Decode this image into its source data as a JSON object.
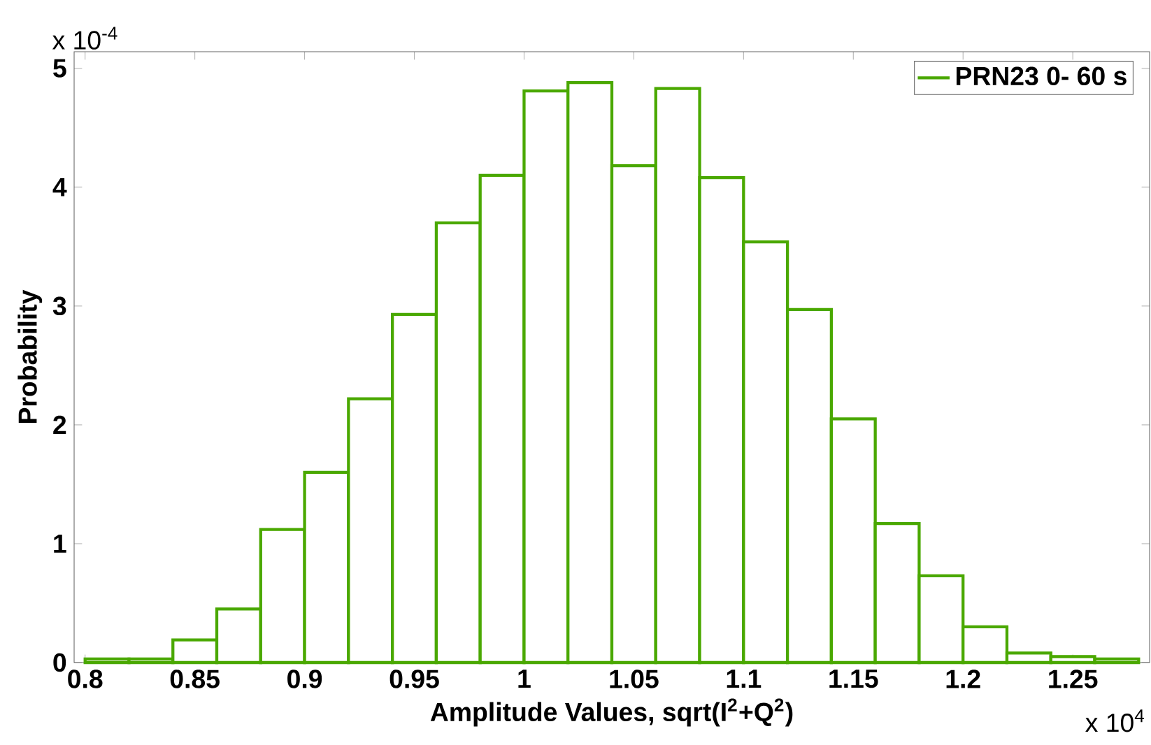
{
  "chart_data": {
    "type": "histogram",
    "xlabel": "Amplitude Values, sqrt(I$^{2}$+Q$^{2}$)",
    "ylabel": "Probability",
    "bins": [
      0.8,
      0.82,
      0.84,
      0.86,
      0.88,
      0.9,
      0.92,
      0.94,
      0.96,
      0.98,
      1.0,
      1.02,
      1.04,
      1.06,
      1.08,
      1.1,
      1.12,
      1.14,
      1.16,
      1.18,
      1.2,
      1.22,
      1.24,
      1.26,
      1.28
    ],
    "series": [
      {
        "name": "PRN23 0- 60 s",
        "color": "#4aa800",
        "values": [
          0.03,
          0.03,
          0.19,
          0.45,
          1.12,
          1.6,
          2.22,
          2.93,
          3.7,
          4.1,
          4.81,
          4.88,
          4.18,
          4.83,
          4.08,
          3.54,
          2.97,
          2.05,
          1.17,
          0.73,
          0.3,
          0.08,
          0.05,
          0.03
        ]
      }
    ],
    "xlim": [
      0.795,
      1.285
    ],
    "ylim": [
      0,
      5.14
    ],
    "xticks": [
      0.8,
      0.85,
      0.9,
      0.95,
      1,
      1.05,
      1.1,
      1.15,
      1.2,
      1.25
    ],
    "yticks": [
      0,
      1,
      2,
      3,
      4,
      5
    ],
    "annotations": [
      "x 10$^{-4}$",
      "x 10$^{4}$"
    ],
    "grid": false,
    "legend": "top right"
  }
}
